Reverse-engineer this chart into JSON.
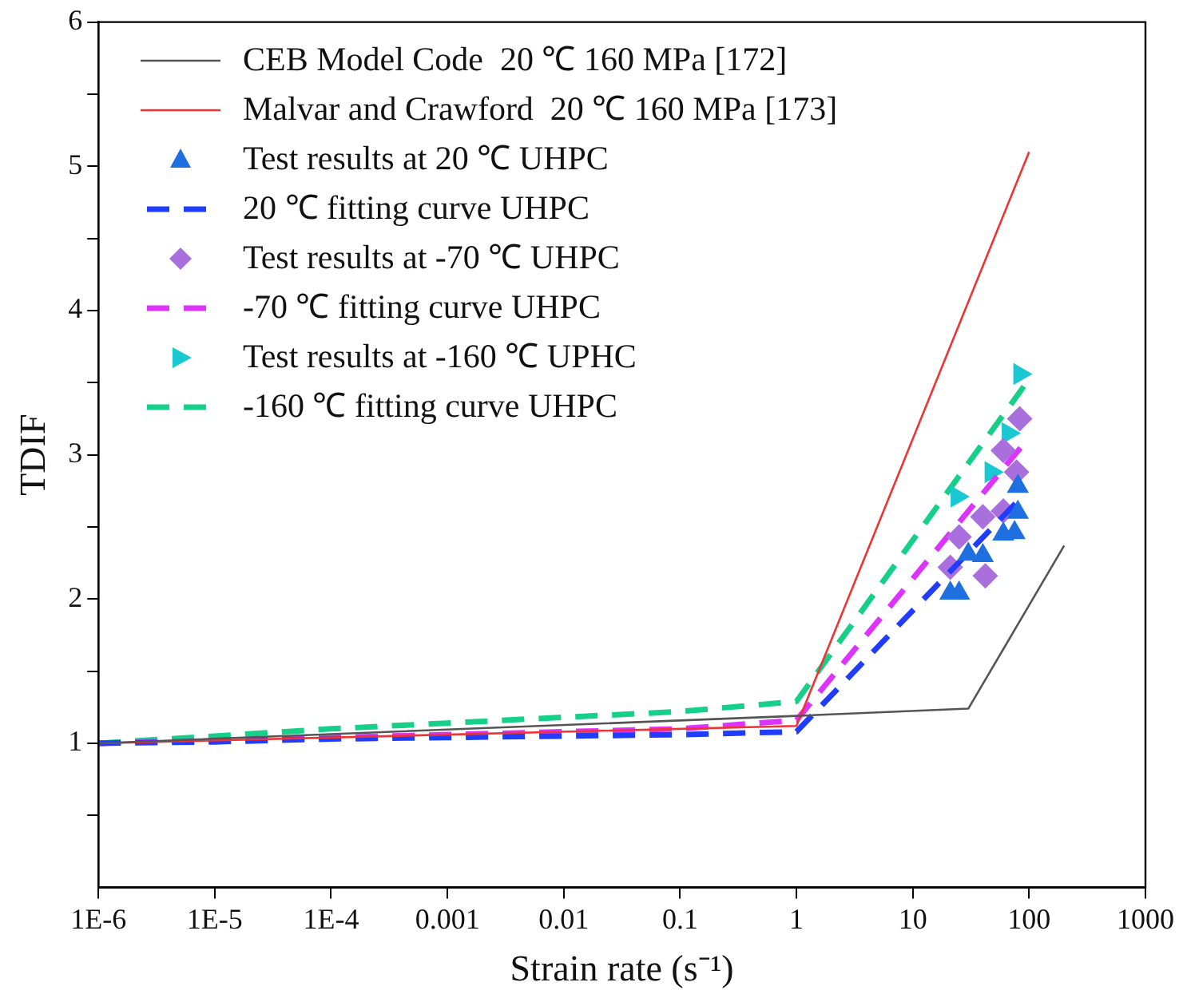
{
  "chart_data": {
    "type": "line",
    "xlabel": "Strain rate (s⁻¹)",
    "ylabel": "TDIF",
    "log": "x",
    "xlim": [
      1e-06,
      1000
    ],
    "ylim": [
      0,
      6
    ],
    "xticks": [
      {
        "value": 1e-06,
        "label": "1E-6"
      },
      {
        "value": 1e-05,
        "label": "1E-5"
      },
      {
        "value": 0.0001,
        "label": "1E-4"
      },
      {
        "value": 0.001,
        "label": "0.001"
      },
      {
        "value": 0.01,
        "label": "0.01"
      },
      {
        "value": 0.1,
        "label": "0.1"
      },
      1,
      10,
      100,
      1000
    ],
    "yticks": [
      {
        "value": 0.5,
        "label": null
      },
      1,
      {
        "value": 1.5,
        "label": null
      },
      2,
      {
        "value": 2.5,
        "label": null
      },
      3,
      {
        "value": 3.5,
        "label": null
      },
      4,
      {
        "value": 4.5,
        "label": null
      },
      5,
      {
        "value": 5.5,
        "label": null
      },
      6
    ],
    "legend": "top left",
    "grid": false,
    "series": [
      {
        "name": "CEB Model Code  20 ℃ 160 MPa [172]",
        "color": "#555555",
        "line_style": "solid",
        "marker": "none",
        "x": [
          1e-06,
          1,
          30,
          200
        ],
        "values": [
          1,
          1.19,
          1.24,
          2.37
        ]
      },
      {
        "name": "Malvar and Crawford  20 ℃ 160 MPa [173]",
        "color": "#ee3333",
        "line_style": "solid",
        "marker": "none",
        "x": [
          1e-06,
          1,
          100
        ],
        "values": [
          1,
          1.12,
          5.1
        ]
      },
      {
        "name": "Test results at 20 ℃ UHPC",
        "type": "scatter",
        "color": "#1e6fe0",
        "marker": "triangle",
        "x": [
          21,
          25,
          30,
          40,
          60,
          75,
          80,
          80
        ],
        "values": [
          2.04,
          2.04,
          2.31,
          2.3,
          2.45,
          2.46,
          2.6,
          2.78
        ]
      },
      {
        "name": "20 ℃ fitting curve UHPC",
        "color": "#1f3cff",
        "line_style": "dashed",
        "marker": "none",
        "x": [
          1e-06,
          1e-05,
          0.0001,
          0.001,
          0.01,
          0.1,
          1,
          80
        ],
        "values": [
          1,
          1.01,
          1.03,
          1.04,
          1.05,
          1.06,
          1.08,
          2.68
        ]
      },
      {
        "name": "Test results at -70 ℃ UHPC",
        "type": "scatter",
        "color": "#a970dd",
        "marker": "diamond",
        "x": [
          21,
          25,
          42,
          40,
          60,
          78,
          60,
          83
        ],
        "values": [
          2.22,
          2.43,
          2.16,
          2.57,
          2.61,
          2.88,
          3.03,
          3.25
        ]
      },
      {
        "name": "-70 ℃ fitting curve UHPC",
        "color": "#dd33ff",
        "line_style": "dashed",
        "marker": "none",
        "x": [
          1e-06,
          1e-05,
          0.0001,
          0.001,
          0.01,
          0.1,
          1,
          95
        ],
        "values": [
          1,
          1.02,
          1.04,
          1.06,
          1.08,
          1.1,
          1.16,
          3.1
        ]
      },
      {
        "name": "Test results at -160 ℃ UPHC",
        "type": "scatter",
        "color": "#19c8d2",
        "marker": "triangle_right",
        "x": [
          24,
          47,
          66,
          83
        ],
        "values": [
          2.71,
          2.88,
          3.15,
          3.56
        ]
      },
      {
        "name": "-160 ℃ fitting curve UHPC",
        "color": "#16d08a",
        "line_style": "dashed",
        "marker": "none",
        "x": [
          1e-06,
          1e-05,
          0.0001,
          0.001,
          0.01,
          0.1,
          1,
          95
        ],
        "values": [
          1,
          1.05,
          1.1,
          1.14,
          1.18,
          1.22,
          1.29,
          3.5
        ]
      }
    ]
  }
}
